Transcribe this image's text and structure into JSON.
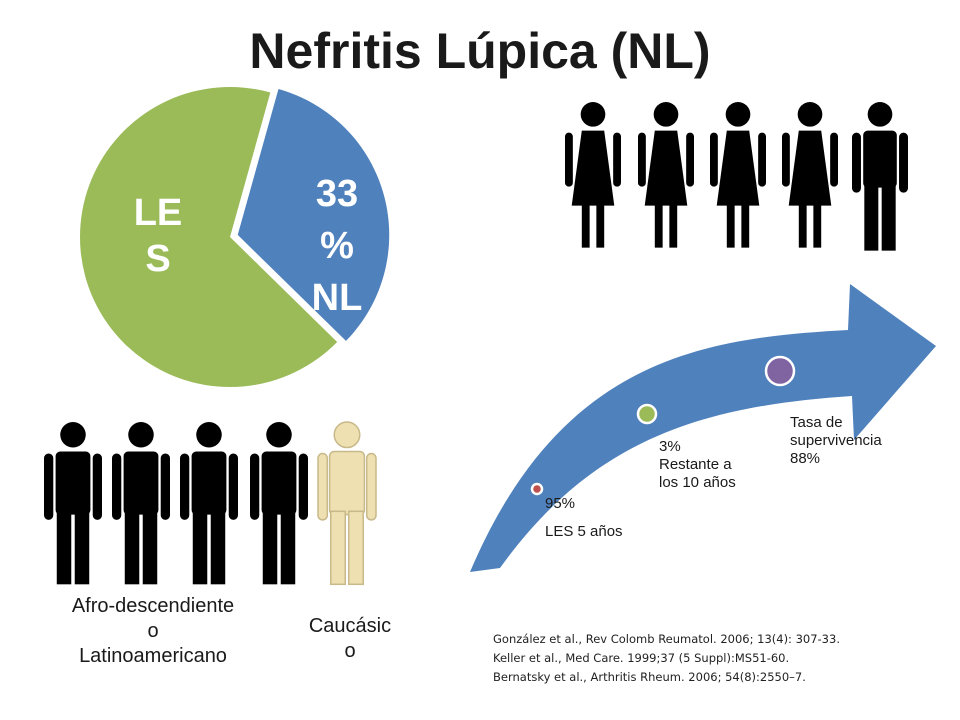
{
  "title": "Nefritis Lúpica (NL)",
  "pie": {
    "main_label": "LE\nS",
    "slice_label": "33\n%\nNL",
    "main_color": "#9bbb59",
    "slice_color": "#4f81bd"
  },
  "chart_data": {
    "type": "pie",
    "categories": [
      "LES",
      "NL"
    ],
    "values": [
      67,
      33
    ]
  },
  "women_group": {
    "icons": [
      "female-icon",
      "female-icon",
      "female-icon",
      "female-icon",
      "male-icon"
    ],
    "color": "#000000"
  },
  "ethnicity_group": {
    "dark_icons": [
      "male-icon",
      "male-icon",
      "male-icon",
      "male-icon"
    ],
    "light_icons": [
      "male-icon"
    ],
    "dark_color": "#000000",
    "light_color": "#eee0b0",
    "dark_label": "Afro-descendiente\no\nLatinoamericano",
    "light_label": "Caucásic\no"
  },
  "survival_arrow": {
    "color": "#4f81bd",
    "markers": [
      {
        "percent": "95%",
        "label": "LES 5 años",
        "color": "#c0504d"
      },
      {
        "percent": "3%",
        "label": "Restante a\nlos 10 años",
        "color": "#9bbb59"
      },
      {
        "percent": "Tasa de\nsupervivencia\n88%",
        "label": "",
        "color": "#8064a2"
      }
    ]
  },
  "references": [
    "González et al., Rev Colomb Reumatol. 2006; 13(4): 307-33.",
    "Keller et al., Med Care. 1999;37 (5 Suppl):MS51-60.",
    "Bernatsky et al., Arthritis Rheum. 2006; 54(8):2550–7."
  ]
}
